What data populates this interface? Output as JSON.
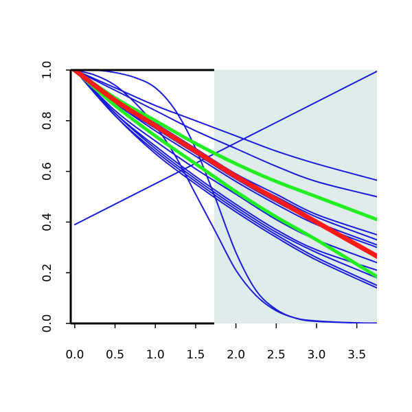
{
  "chart_data": {
    "type": "line",
    "title": "",
    "xlabel": "",
    "ylabel": "",
    "xlim": [
      -0.05,
      3.75
    ],
    "ylim": [
      0.0,
      1.0
    ],
    "grid": false,
    "legend": "none",
    "x_ticks": [
      "0.0",
      "0.5",
      "1.0",
      "1.5",
      "2.0",
      "2.5",
      "3.0",
      "3.5"
    ],
    "y_ticks": [
      "0.0",
      "0.2",
      "0.4",
      "0.6",
      "0.8",
      "1.0"
    ],
    "shaded_region": {
      "x_start": 1.73,
      "x_end": 3.75,
      "color": "#e0ecec"
    },
    "colors": {
      "blue": "#1a1adb",
      "green": "#22ee22",
      "red": "#ff1a1a",
      "axis": "#000000"
    },
    "series": [
      {
        "color": "blue",
        "width": 2,
        "x": [
          0,
          3.75
        ],
        "y": [
          0.39,
          0.995
        ]
      },
      {
        "color": "blue",
        "width": 2,
        "x": [
          0,
          0.5,
          1.0,
          1.5,
          2.0,
          2.5,
          3.0,
          3.75
        ],
        "y": [
          1.0,
          0.93,
          0.86,
          0.8,
          0.74,
          0.68,
          0.63,
          0.565
        ]
      },
      {
        "color": "blue",
        "width": 2,
        "x": [
          0,
          0.5,
          1.0,
          1.5,
          2.0,
          2.5,
          3.0,
          3.75
        ],
        "y": [
          1.0,
          0.92,
          0.84,
          0.76,
          0.69,
          0.62,
          0.56,
          0.5
        ]
      },
      {
        "color": "blue",
        "width": 2,
        "x": [
          0,
          0.5,
          1.0,
          1.5,
          2.0,
          2.5,
          3.0,
          3.75
        ],
        "y": [
          1.0,
          0.89,
          0.79,
          0.69,
          0.59,
          0.51,
          0.43,
          0.35
        ]
      },
      {
        "color": "blue",
        "width": 2,
        "x": [
          0,
          0.5,
          1.0,
          1.5,
          2.0,
          2.5,
          3.0,
          3.75
        ],
        "y": [
          1.0,
          0.88,
          0.78,
          0.68,
          0.58,
          0.5,
          0.42,
          0.33
        ]
      },
      {
        "color": "blue",
        "width": 2,
        "x": [
          0,
          0.5,
          1.0,
          1.5,
          2.0,
          2.5,
          3.0,
          3.75
        ],
        "y": [
          1.0,
          0.87,
          0.77,
          0.67,
          0.57,
          0.48,
          0.4,
          0.31
        ]
      },
      {
        "color": "blue",
        "width": 2,
        "x": [
          0,
          0.5,
          1.0,
          1.5,
          2.0,
          2.5,
          3.0,
          3.75
        ],
        "y": [
          1.0,
          0.87,
          0.76,
          0.66,
          0.56,
          0.47,
          0.39,
          0.3
        ]
      },
      {
        "color": "blue",
        "width": 2,
        "x": [
          0,
          0.5,
          1.0,
          1.5,
          2.0,
          2.5,
          3.0,
          3.75
        ],
        "y": [
          1.0,
          0.84,
          0.72,
          0.61,
          0.51,
          0.41,
          0.33,
          0.24
        ]
      },
      {
        "color": "blue",
        "width": 2,
        "x": [
          0,
          0.5,
          1.0,
          1.5,
          2.0,
          2.5,
          3.0,
          3.75
        ],
        "y": [
          1.0,
          0.83,
          0.7,
          0.58,
          0.47,
          0.37,
          0.29,
          0.21
        ]
      },
      {
        "color": "blue",
        "width": 2,
        "x": [
          0,
          0.5,
          1.0,
          1.5,
          2.0,
          2.5,
          3.0,
          3.75
        ],
        "y": [
          1.0,
          0.83,
          0.69,
          0.57,
          0.46,
          0.36,
          0.28,
          0.18
        ]
      },
      {
        "color": "blue",
        "width": 2,
        "x": [
          0,
          0.5,
          1.0,
          1.5,
          2.0,
          2.5,
          3.0,
          3.75
        ],
        "y": [
          1.0,
          0.82,
          0.68,
          0.56,
          0.45,
          0.35,
          0.26,
          0.15
        ]
      },
      {
        "color": "blue",
        "width": 2,
        "x": [
          0,
          0.5,
          1.0,
          1.5,
          2.0,
          2.5,
          3.0,
          3.75
        ],
        "y": [
          1.0,
          0.82,
          0.67,
          0.55,
          0.44,
          0.34,
          0.25,
          0.14
        ]
      },
      {
        "color": "blue",
        "width": 2,
        "x": [
          0,
          0.25,
          0.5,
          0.75,
          1.0,
          1.25,
          1.5,
          1.75,
          2.0,
          2.25,
          2.5,
          2.75,
          3.0,
          3.5,
          3.75
        ],
        "y": [
          1.0,
          1.0,
          0.99,
          0.97,
          0.93,
          0.84,
          0.69,
          0.49,
          0.28,
          0.13,
          0.055,
          0.02,
          0.008,
          0.002,
          0.001
        ]
      },
      {
        "color": "blue",
        "width": 2,
        "x": [
          0,
          0.25,
          0.5,
          0.75,
          1.0,
          1.25,
          1.5,
          1.75,
          2.0,
          2.25,
          2.5,
          2.75,
          3.0,
          3.5,
          3.75
        ],
        "y": [
          1.0,
          0.98,
          0.94,
          0.87,
          0.78,
          0.66,
          0.51,
          0.36,
          0.21,
          0.11,
          0.05,
          0.02,
          0.01,
          0.002,
          0.001
        ]
      },
      {
        "color": "green",
        "width": 5,
        "x": [
          0,
          0.5,
          1.0,
          1.5,
          2.0,
          2.5,
          3.0,
          3.75
        ],
        "y": [
          1.0,
          0.89,
          0.8,
          0.71,
          0.63,
          0.56,
          0.5,
          0.41
        ]
      },
      {
        "color": "green",
        "width": 5,
        "x": [
          0,
          0.5,
          1.0,
          1.5,
          2.0,
          2.5,
          3.0,
          3.75
        ],
        "y": [
          1.0,
          0.86,
          0.74,
          0.63,
          0.52,
          0.42,
          0.33,
          0.185
        ]
      },
      {
        "color": "red",
        "width": 7,
        "x": [
          0,
          0.5,
          1.0,
          1.5,
          2.0,
          2.5,
          3.0,
          3.75
        ],
        "y": [
          1.0,
          0.88,
          0.78,
          0.68,
          0.58,
          0.49,
          0.4,
          0.265
        ]
      }
    ]
  }
}
